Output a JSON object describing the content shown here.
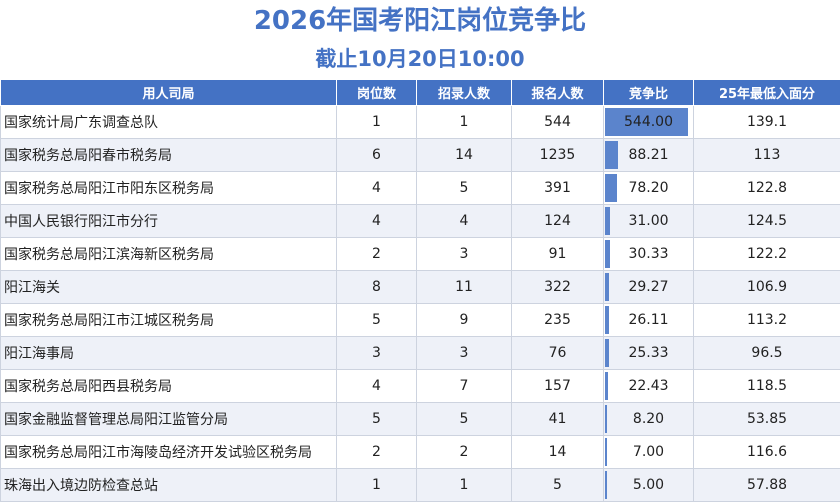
{
  "title": "2026年国考阳江岗位竞争比",
  "subtitle": "截止10月20日10:00",
  "colors": {
    "header_bg": "#4472c4",
    "bar": "#5b84cc",
    "title": "#4472c4"
  },
  "table": {
    "headers": [
      "用人司局",
      "岗位数",
      "招录人数",
      "报名人数",
      "竞争比",
      "25年最低入面分"
    ],
    "rows": [
      {
        "name": "国家统计局广东调查总队",
        "posts": "1",
        "hires": "1",
        "applicants": "544",
        "ratio": "544.00",
        "ratio_value": 544.0,
        "score": "139.1"
      },
      {
        "name": "国家税务总局阳春市税务局",
        "posts": "6",
        "hires": "14",
        "applicants": "1235",
        "ratio": "88.21",
        "ratio_value": 88.21,
        "score": "113"
      },
      {
        "name": "国家税务总局阳江市阳东区税务局",
        "posts": "4",
        "hires": "5",
        "applicants": "391",
        "ratio": "78.20",
        "ratio_value": 78.2,
        "score": "122.8"
      },
      {
        "name": "中国人民银行阳江市分行",
        "posts": "4",
        "hires": "4",
        "applicants": "124",
        "ratio": "31.00",
        "ratio_value": 31.0,
        "score": "124.5"
      },
      {
        "name": "国家税务总局阳江滨海新区税务局",
        "posts": "2",
        "hires": "3",
        "applicants": "91",
        "ratio": "30.33",
        "ratio_value": 30.33,
        "score": "122.2"
      },
      {
        "name": "阳江海关",
        "posts": "8",
        "hires": "11",
        "applicants": "322",
        "ratio": "29.27",
        "ratio_value": 29.27,
        "score": "106.9"
      },
      {
        "name": "国家税务总局阳江市江城区税务局",
        "posts": "5",
        "hires": "9",
        "applicants": "235",
        "ratio": "26.11",
        "ratio_value": 26.11,
        "score": "113.2"
      },
      {
        "name": "阳江海事局",
        "posts": "3",
        "hires": "3",
        "applicants": "76",
        "ratio": "25.33",
        "ratio_value": 25.33,
        "score": "96.5"
      },
      {
        "name": "国家税务总局阳西县税务局",
        "posts": "4",
        "hires": "7",
        "applicants": "157",
        "ratio": "22.43",
        "ratio_value": 22.43,
        "score": "118.5"
      },
      {
        "name": "国家金融监督管理总局阳江监管分局",
        "posts": "5",
        "hires": "5",
        "applicants": "41",
        "ratio": "8.20",
        "ratio_value": 8.2,
        "score": "53.85"
      },
      {
        "name": "国家税务总局阳江市海陵岛经济开发试验区税务局",
        "posts": "2",
        "hires": "2",
        "applicants": "14",
        "ratio": "7.00",
        "ratio_value": 7.0,
        "score": "116.6"
      },
      {
        "name": "珠海出入境边防检查总站",
        "posts": "1",
        "hires": "1",
        "applicants": "5",
        "ratio": "5.00",
        "ratio_value": 5.0,
        "score": "57.88"
      }
    ]
  }
}
